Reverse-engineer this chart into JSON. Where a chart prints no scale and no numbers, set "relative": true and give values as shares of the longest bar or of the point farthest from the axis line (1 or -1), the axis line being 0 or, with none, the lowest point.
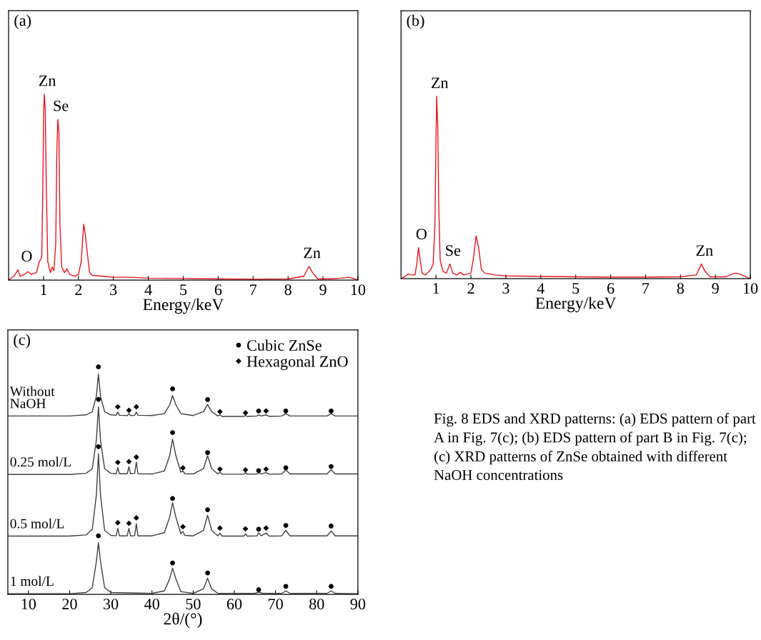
{
  "chart_data": [
    {
      "type": "line",
      "title": "(a)",
      "xlabel": "Energy/keV",
      "relative": true,
      "tick_labels": "x",
      "xlim": [
        0,
        10
      ],
      "xticks": [
        1,
        2,
        3,
        4,
        5,
        6,
        7,
        8,
        9,
        10
      ],
      "grid": false,
      "legend": false,
      "line_style": "solid",
      "marker": "none",
      "series": [
        {
          "color": "#e8161b",
          "x": [
            0,
            0.15,
            0.27,
            0.33,
            0.45,
            0.55,
            0.65,
            0.8,
            0.88,
            0.95,
            0.98,
            1.0,
            1.02,
            1.05,
            1.08,
            1.12,
            1.2,
            1.25,
            1.3,
            1.35,
            1.38,
            1.41,
            1.44,
            1.47,
            1.52,
            1.6,
            1.67,
            1.75,
            1.9,
            2.0,
            2.08,
            2.15,
            2.2,
            2.25,
            2.32,
            2.4,
            2.7,
            3.0,
            3.5,
            4,
            5,
            6,
            7,
            8,
            8.45,
            8.6,
            8.7,
            8.85,
            9.2,
            9.5,
            9.75,
            10
          ],
          "values": [
            0,
            0.02,
            0.055,
            0.02,
            0.03,
            0.045,
            0.03,
            0.04,
            0.1,
            0.12,
            0.5,
            0.85,
            1.0,
            0.92,
            0.5,
            0.1,
            0.04,
            0.07,
            0.05,
            0.2,
            0.68,
            0.865,
            0.8,
            0.3,
            0.07,
            0.04,
            0.06,
            0.03,
            0.02,
            0.03,
            0.1,
            0.3,
            0.24,
            0.15,
            0.04,
            0.025,
            0.02,
            0.015,
            0.015,
            0.01,
            0.008,
            0.006,
            0.004,
            0.006,
            0.02,
            0.073,
            0.04,
            0.006,
            0.006,
            0.01,
            0.015,
            0
          ]
        }
      ],
      "annotations": [
        {
          "text": "O",
          "x": 0.27,
          "y": 0.055
        },
        {
          "text": "Zn",
          "x": 1.02,
          "y": 1.0
        },
        {
          "text": "Se",
          "x": 1.41,
          "y": 0.865
        },
        {
          "text": "Zn",
          "x": 8.6,
          "y": 0.073
        }
      ]
    },
    {
      "type": "line",
      "title": "(b)",
      "xlabel": "Energy/keV",
      "relative": true,
      "tick_labels": "x",
      "xlim": [
        0,
        10
      ],
      "xticks": [
        1,
        2,
        3,
        4,
        5,
        6,
        7,
        8,
        9,
        10
      ],
      "grid": false,
      "legend": false,
      "line_style": "solid",
      "marker": "none",
      "series": [
        {
          "color": "#e8161b",
          "x": [
            0,
            0.1,
            0.2,
            0.3,
            0.4,
            0.45,
            0.5,
            0.55,
            0.6,
            0.7,
            0.85,
            0.92,
            0.97,
            1.0,
            1.02,
            1.05,
            1.08,
            1.12,
            1.2,
            1.3,
            1.4,
            1.48,
            1.6,
            1.7,
            1.8,
            2.0,
            2.08,
            2.15,
            2.22,
            2.3,
            2.4,
            2.7,
            3,
            4,
            5,
            6,
            7,
            8,
            8.45,
            8.6,
            8.7,
            8.85,
            9.3,
            9.55,
            9.7,
            10
          ],
          "values": [
            0,
            0.01,
            0.025,
            0.02,
            0.02,
            0.08,
            0.17,
            0.1,
            0.03,
            0.02,
            0.05,
            0.08,
            0.3,
            0.75,
            1.0,
            0.85,
            0.4,
            0.1,
            0.04,
            0.03,
            0.08,
            0.03,
            0.02,
            0.035,
            0.02,
            0.03,
            0.12,
            0.235,
            0.17,
            0.05,
            0.03,
            0.02,
            0.015,
            0.012,
            0.01,
            0.008,
            0.008,
            0.01,
            0.02,
            0.08,
            0.04,
            0.01,
            0.01,
            0.03,
            0.025,
            0
          ]
        }
      ],
      "annotations": [
        {
          "text": "O",
          "x": 0.5,
          "y": 0.17
        },
        {
          "text": "Zn",
          "x": 1.02,
          "y": 1.0
        },
        {
          "text": "Se",
          "x": 1.4,
          "y": 0.08
        },
        {
          "text": "Zn",
          "x": 8.6,
          "y": 0.08
        }
      ]
    },
    {
      "type": "line",
      "title": "(c)",
      "xlabel": "2θ/(°)",
      "relative": true,
      "tick_labels": "x",
      "xlim": [
        5,
        90
      ],
      "xticks": [
        10,
        20,
        30,
        40,
        50,
        60,
        70,
        80,
        90
      ],
      "grid": false,
      "legend": "top right",
      "line_style": "solid",
      "marker": "none",
      "series": [
        {
          "name": "Without\nNaOH",
          "color": "#404040",
          "x": [
            5,
            20,
            24,
            25.5,
            26.5,
            27,
            27.5,
            28.5,
            30,
            31.3,
            31.7,
            32.1,
            34,
            34.4,
            34.8,
            35.8,
            36.2,
            36.6,
            40,
            43,
            44.3,
            45,
            45.8,
            47,
            50,
            52.5,
            53.5,
            54.5,
            56,
            56.5,
            57,
            62.3,
            62.7,
            63.1,
            65.5,
            65.9,
            66.5,
            67.7,
            68.5,
            71.5,
            72.5,
            73.5,
            82.5,
            83.5,
            84.5,
            90
          ],
          "values": [
            0.784,
            0.784,
            0.789,
            0.803,
            0.871,
            0.968,
            0.871,
            0.803,
            0.789,
            0.787,
            0.801,
            0.787,
            0.786,
            0.794,
            0.786,
            0.787,
            0.801,
            0.787,
            0.786,
            0.794,
            0.833,
            0.874,
            0.833,
            0.794,
            0.786,
            0.803,
            0.835,
            0.803,
            0.784,
            0.789,
            0.782,
            0.782,
            0.786,
            0.782,
            0.784,
            0.789,
            0.784,
            0.789,
            0.782,
            0.784,
            0.794,
            0.784,
            0.784,
            0.794,
            0.784,
            0.784
          ]
        },
        {
          "name": "0.25 mol/L",
          "color": "#404040",
          "x": [
            5,
            20,
            24,
            25.5,
            26.5,
            27,
            27.5,
            28.5,
            30,
            31.3,
            31.7,
            32.1,
            34,
            34.4,
            34.8,
            35.8,
            36.2,
            36.6,
            40,
            43,
            44.3,
            45,
            45.8,
            47,
            47.5,
            48,
            50,
            52.5,
            53.5,
            54.5,
            56,
            56.5,
            57,
            62.3,
            62.7,
            63.1,
            65.5,
            65.9,
            66.5,
            67.7,
            68.5,
            71.5,
            72.5,
            73.5,
            82.5,
            83.5,
            84.5,
            90
          ],
          "values": [
            0.527,
            0.527,
            0.532,
            0.552,
            0.678,
            0.824,
            0.678,
            0.552,
            0.532,
            0.53,
            0.557,
            0.53,
            0.53,
            0.561,
            0.53,
            0.532,
            0.581,
            0.53,
            0.529,
            0.542,
            0.61,
            0.682,
            0.61,
            0.537,
            0.542,
            0.53,
            0.529,
            0.552,
            0.609,
            0.552,
            0.529,
            0.537,
            0.528,
            0.528,
            0.535,
            0.528,
            0.529,
            0.534,
            0.529,
            0.535,
            0.528,
            0.529,
            0.547,
            0.529,
            0.529,
            0.547,
            0.529,
            0.529
          ]
        },
        {
          "name": "0.5 mol/L",
          "color": "#404040",
          "x": [
            5,
            20,
            24,
            25.5,
            26.5,
            27,
            27.5,
            28.5,
            30,
            31.3,
            31.7,
            32.1,
            34,
            34.4,
            34.8,
            35.8,
            36.2,
            36.6,
            40,
            43,
            44.3,
            45,
            45.8,
            47,
            47.5,
            48,
            50,
            52.5,
            53.5,
            54.5,
            56,
            56.5,
            57,
            62.3,
            62.7,
            63.1,
            65.5,
            65.9,
            66.5,
            67.7,
            68.5,
            71.5,
            72.5,
            73.5,
            82.5,
            83.5,
            84.5,
            90
          ],
          "values": [
            0.256,
            0.256,
            0.261,
            0.286,
            0.436,
            0.618,
            0.436,
            0.281,
            0.259,
            0.257,
            0.29,
            0.257,
            0.257,
            0.29,
            0.257,
            0.258,
            0.31,
            0.257,
            0.257,
            0.271,
            0.339,
            0.403,
            0.339,
            0.266,
            0.276,
            0.259,
            0.257,
            0.281,
            0.348,
            0.281,
            0.257,
            0.269,
            0.256,
            0.256,
            0.266,
            0.256,
            0.257,
            0.271,
            0.257,
            0.269,
            0.256,
            0.257,
            0.281,
            0.257,
            0.257,
            0.278,
            0.257,
            0.257
          ]
        },
        {
          "name": "1 mol/L",
          "color": "#404040",
          "x": [
            5,
            20,
            24,
            25.5,
            26.5,
            27,
            27.5,
            28.5,
            30,
            40,
            43,
            44.3,
            45,
            45.8,
            47,
            50,
            52.5,
            53.5,
            54.5,
            56,
            65,
            65.9,
            67,
            71.5,
            72.5,
            73.5,
            82.5,
            83.5,
            84.5,
            90
          ],
          "values": [
            0.003,
            0.003,
            0.008,
            0.029,
            0.145,
            0.227,
            0.145,
            0.029,
            0.008,
            0.004,
            0.015,
            0.068,
            0.115,
            0.068,
            0.012,
            0.004,
            0.024,
            0.071,
            0.024,
            0.004,
            0.004,
            0.009,
            0.004,
            0.004,
            0.015,
            0.004,
            0.004,
            0.015,
            0.004,
            0.003
          ]
        },
        {
          "name": "Cubic ZnSe",
          "type": "scatter",
          "marker": "circle",
          "color": "#000000",
          "x": [
            27,
            45,
            53.5,
            65.9,
            72.5,
            83.5,
            27,
            45,
            53.5,
            65.9,
            72.5,
            83.5,
            27,
            45,
            53.5,
            65.9,
            72.5,
            83.5,
            27,
            45,
            53.5,
            65.9,
            72.5,
            83.5
          ],
          "values": [
            1.0,
            0.903,
            0.856,
            0.806,
            0.806,
            0.806,
            0.857,
            0.711,
            0.623,
            0.544,
            0.556,
            0.562,
            0.649,
            0.421,
            0.372,
            0.286,
            0.303,
            0.3,
            0.257,
            0.138,
            0.094,
            0.02,
            0.035,
            0.035
          ]
        },
        {
          "name": "Hexagonal ZnO",
          "type": "scatter",
          "marker": "diamond",
          "color": "#000000",
          "x": [
            31.7,
            34.4,
            36.2,
            56.5,
            62.7,
            67.7,
            31.7,
            34.4,
            36.2,
            47.5,
            56.5,
            62.7,
            67.7,
            31.7,
            34.4,
            36.2,
            47.5,
            56.5,
            62.7,
            67.7
          ],
          "values": [
            0.824,
            0.809,
            0.824,
            0.803,
            0.798,
            0.806,
            0.58,
            0.583,
            0.603,
            0.556,
            0.55,
            0.547,
            0.55,
            0.315,
            0.312,
            0.336,
            0.297,
            0.291,
            0.288,
            0.291
          ]
        }
      ],
      "annotations": [
        "Fig. 8 EDS and XRD patterns: (a) EDS pattern of part A in Fig. 7(c); (b) EDS pattern of part B in Fig. 7(c); (c) XRD patterns of ZnSe obtained with different NaOH concentrations"
      ]
    }
  ]
}
